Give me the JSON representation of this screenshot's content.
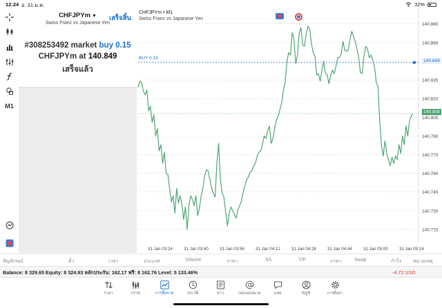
{
  "status_bar": {
    "time": "12:24",
    "date": "อ. 31 ม.ค.",
    "battery": "32%",
    "battery_level": 0.32
  },
  "toolbar": {
    "icons": [
      "crosshair-icon",
      "candlestick-icon",
      "bar-chart-icon",
      "indicators-icon",
      "function-icon",
      "objects-icon"
    ],
    "timeframe": "M1",
    "bottom_icons": [
      "market-watch-icon",
      "layout-icon"
    ]
  },
  "order_panel": {
    "symbol": "CHFJPYm",
    "done_label": "เสร็จสิ้น",
    "description": "Swiss Franc vs Japanese Yen",
    "line1_prefix": "#308253492 market ",
    "line1_buy": "buy 0.15",
    "line2_prefix": "CHFJPYm at ",
    "line2_price": "140.849",
    "line3": "เสร็จแล้ว"
  },
  "chart": {
    "symbol_line": "CHFJPYm • M1",
    "description": "Swiss Franc vs Japanese Yen",
    "buy_line_label": "BUY 0.15",
    "bid_price_tag": "140.808",
    "ask_price_tag": "140.849",
    "colors": {
      "line": "#4fa374",
      "buy_line": "#2a6fc9",
      "bid_line": "#4fa374",
      "grid": "#d8d8d8"
    }
  },
  "chart_data": {
    "type": "line",
    "xlabel": "",
    "ylabel": "",
    "ylim": [
      140.705,
      140.892
    ],
    "y_ticks": [
      "140.880",
      "140.865",
      "140.850",
      "140.835",
      "140.820",
      "140.805",
      "140.790",
      "140.775",
      "140.760",
      "140.745",
      "140.730",
      "140.715"
    ],
    "x_ticks": [
      "31 Jan 03:24",
      "31 Jan 03:40",
      "31 Jan 03:56",
      "31 Jan 04:12",
      "31 Jan 04:28",
      "31 Jan 04:44",
      "31 Jan 05:00",
      "31 Jan 05:16"
    ],
    "series": [
      {
        "values": [
          140.829,
          140.834,
          140.833,
          140.826,
          140.823,
          140.827,
          140.81,
          140.814,
          140.801,
          140.807,
          140.79,
          140.796,
          140.778,
          140.783,
          140.768,
          140.777,
          140.76,
          140.759,
          140.748,
          140.737,
          140.742,
          140.728,
          140.748,
          140.736,
          140.742,
          140.735,
          140.723,
          140.733,
          140.715,
          140.734,
          140.742,
          140.739,
          140.734,
          140.742,
          140.726,
          140.732,
          140.742,
          140.748,
          140.758,
          140.763,
          140.762,
          140.755,
          140.748,
          140.744,
          140.741,
          140.769,
          140.784,
          140.755,
          140.744,
          140.741,
          140.729,
          140.718,
          140.728,
          140.733,
          140.73,
          140.727,
          140.724,
          140.731,
          140.734,
          140.738,
          140.745,
          140.75,
          140.755,
          140.757,
          140.761,
          140.762,
          140.766,
          140.768,
          140.774,
          140.777,
          140.778,
          140.783,
          140.79,
          140.788,
          140.794,
          140.798,
          140.784,
          140.788,
          140.796,
          140.803,
          140.806,
          140.811,
          140.817,
          140.827,
          140.833,
          140.85,
          140.857,
          140.855,
          140.873,
          140.868,
          140.848,
          140.855,
          140.872,
          140.877,
          140.863,
          140.862,
          140.872,
          140.878,
          140.876,
          140.864,
          140.857,
          140.854,
          140.839,
          140.84,
          140.834,
          140.843,
          140.85,
          140.84,
          140.839,
          140.832,
          140.839,
          140.843,
          140.84,
          140.846,
          140.853,
          140.853,
          140.856,
          140.866,
          140.859,
          140.858,
          140.859,
          140.867,
          140.874,
          140.87,
          140.866,
          140.86,
          140.853,
          140.841,
          140.84,
          140.854,
          140.862,
          140.86,
          140.853,
          140.855,
          140.851,
          140.846,
          140.833,
          140.83,
          140.802,
          140.782,
          140.774,
          140.786,
          140.776,
          140.771,
          140.766,
          140.773,
          140.768,
          140.774,
          140.771,
          140.783,
          140.776,
          140.79,
          140.783,
          140.798,
          140.79,
          140.802,
          140.806,
          140.808
        ]
      }
    ],
    "grid": "horizontal dashed",
    "price_lines": {
      "buy": 140.849,
      "bid": 140.808
    }
  },
  "trade_headers": [
    "สัญลักษณ์",
    "ตั๋ว",
    "เวลา",
    "ประเภท",
    "Volume",
    "ราคา",
    "S/L",
    "T/P",
    "ราคา",
    "Swap",
    "กำไร",
    "หมายเหตุ"
  ],
  "balance_bar": {
    "text": "Balance: 8 329.65 Equity: 8 324.93 หลักประกัน: 162.17 ฟรี: 8 162.76 Level: 5 133.46%",
    "profit": "-4.72  USD"
  },
  "tabs": [
    {
      "label": "ราคา",
      "icon": "quotes-icon"
    },
    {
      "label": "กราฟ",
      "icon": "chart-icon"
    },
    {
      "label": "การซื้อขาย",
      "icon": "trade-icon",
      "active": true
    },
    {
      "label": "ประวัติ",
      "icon": "history-icon"
    },
    {
      "label": "ข่าว",
      "icon": "news-icon"
    },
    {
      "label": "กล่องจดหมาย",
      "icon": "mailbox-icon"
    },
    {
      "label": "แชท",
      "icon": "chat-icon"
    },
    {
      "label": "บัญชี",
      "icon": "account-icon"
    },
    {
      "label": "การตั้งค่า",
      "icon": "settings-icon"
    }
  ]
}
